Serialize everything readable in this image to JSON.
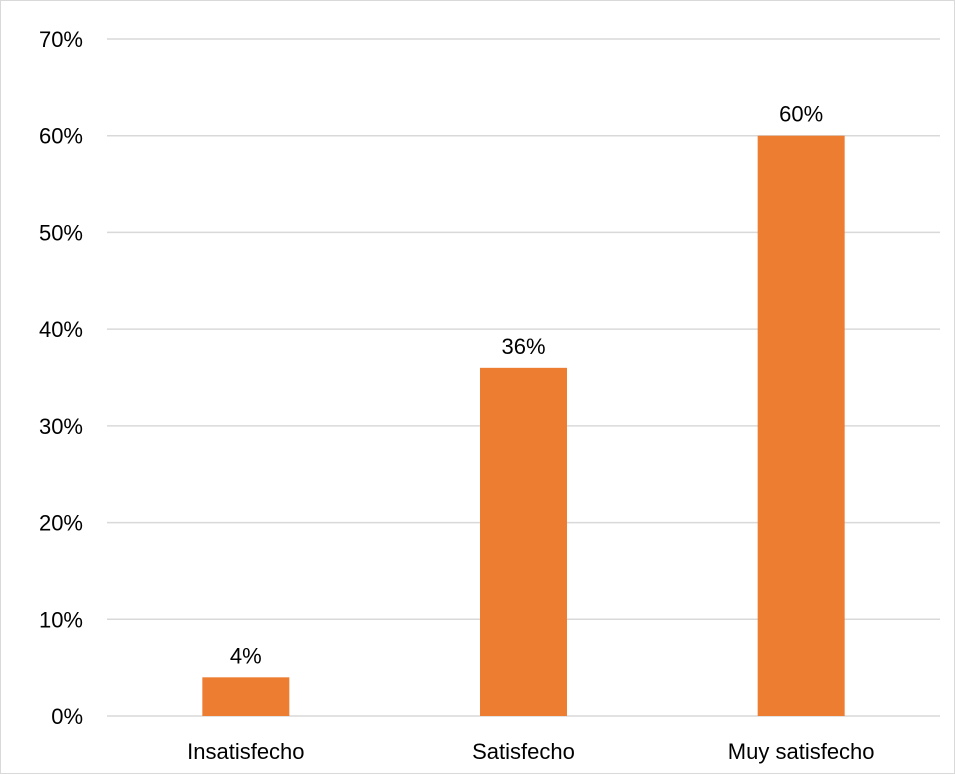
{
  "chart_data": {
    "type": "bar",
    "categories": [
      "Insatisfecho",
      "Satisfecho",
      "Muy satisfecho"
    ],
    "values": [
      4,
      36,
      60
    ],
    "data_labels": [
      "4%",
      "36%",
      "60%"
    ],
    "ylim": [
      0,
      70
    ],
    "yticks": [
      0,
      10,
      20,
      30,
      40,
      50,
      60,
      70
    ],
    "ytick_labels": [
      "0%",
      "10%",
      "20%",
      "30%",
      "40%",
      "50%",
      "60%",
      "70%"
    ],
    "grid": true,
    "legend": "none",
    "colors": {
      "bar": "#ED7D31",
      "grid": "#D9D9D9",
      "text": "#000000"
    }
  }
}
